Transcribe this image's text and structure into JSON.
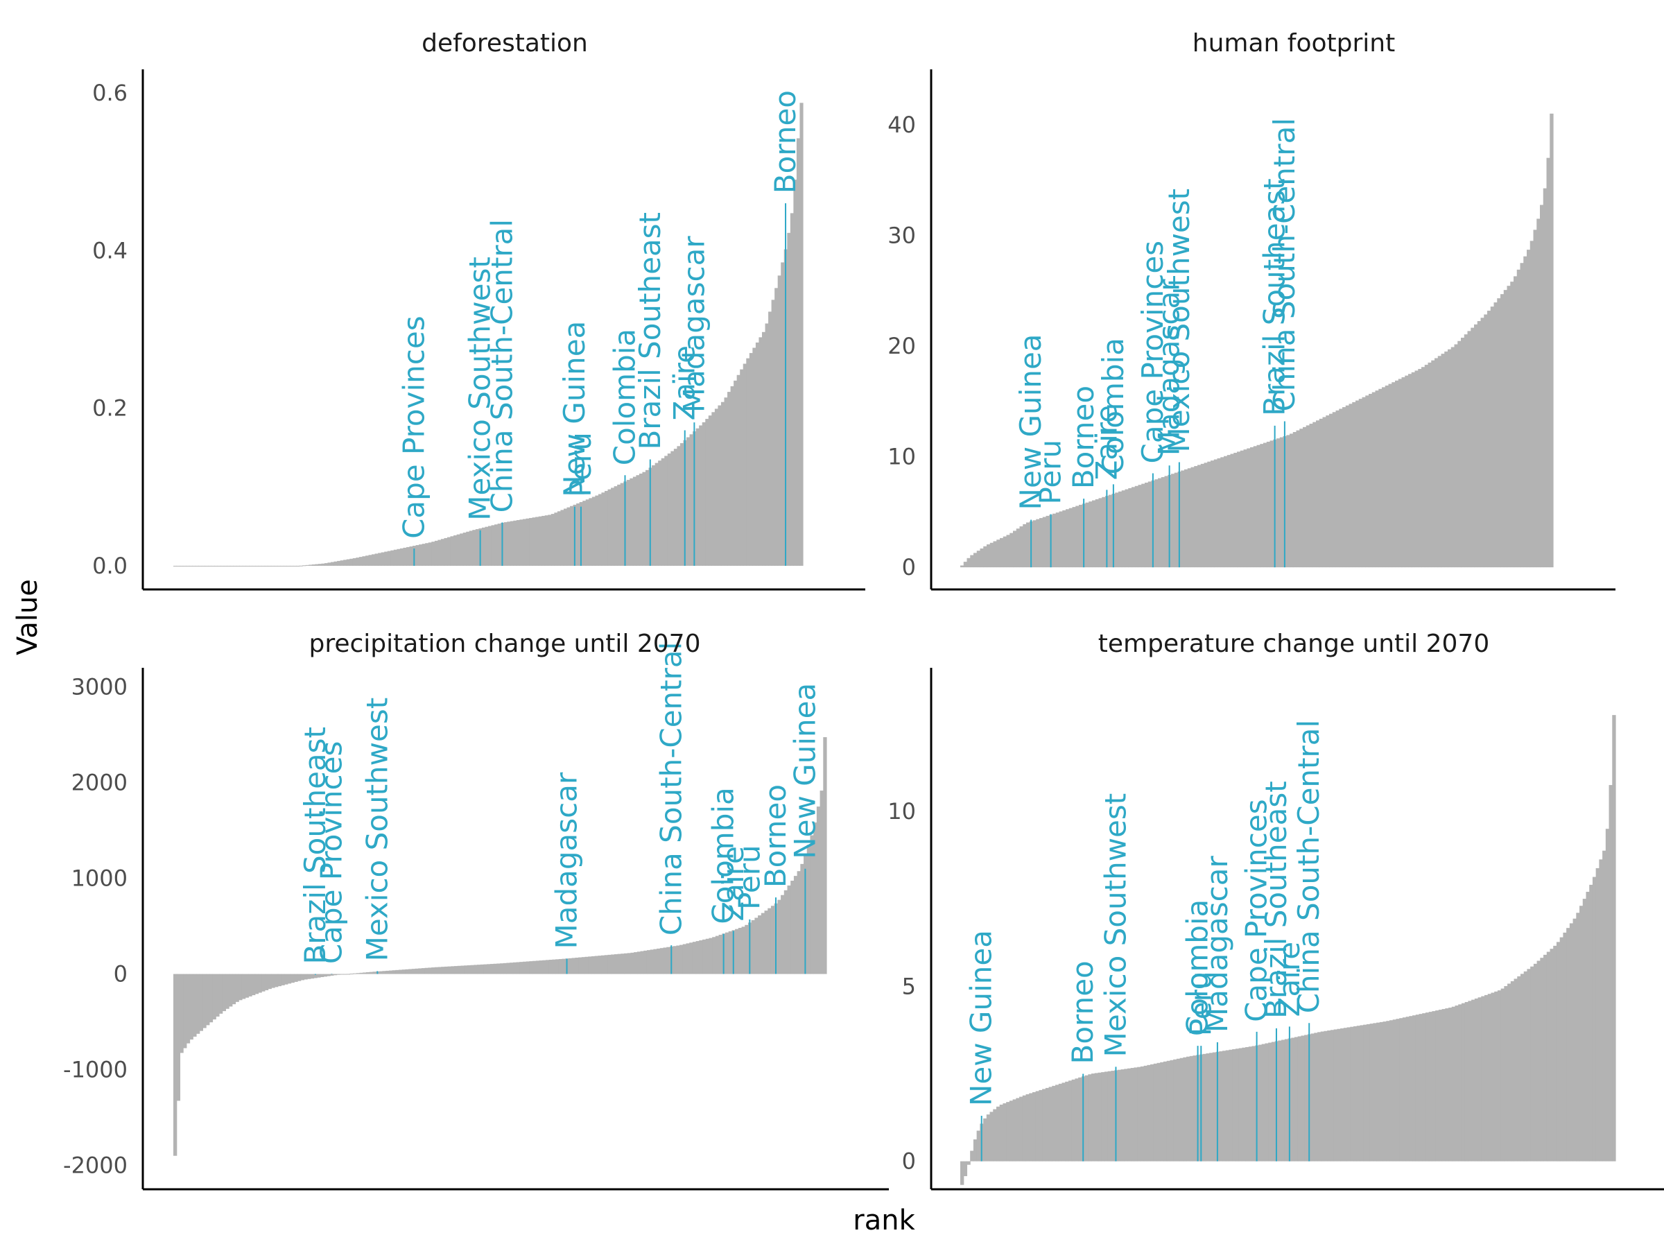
{
  "xlabel": "rank",
  "ylabel": "Value",
  "colors": {
    "bars": "#b3b3b3",
    "highlight": "#2ea8c6",
    "axis": "#000000",
    "tick_text": "#4d4d4d"
  },
  "chart_data": [
    {
      "type": "bar",
      "title": "deforestation",
      "n_bars": 200,
      "ylim": [
        -0.03,
        0.63
      ],
      "yticks": [
        0.0,
        0.2,
        0.4,
        0.6
      ],
      "ytick_labels": [
        "0.0",
        "0.2",
        "0.4",
        "0.6"
      ],
      "profile": [
        [
          0,
          0.0
        ],
        [
          40,
          0.0
        ],
        [
          48,
          0.003
        ],
        [
          58,
          0.01
        ],
        [
          70,
          0.02
        ],
        [
          82,
          0.03
        ],
        [
          95,
          0.045
        ],
        [
          105,
          0.055
        ],
        [
          120,
          0.065
        ],
        [
          135,
          0.09
        ],
        [
          150,
          0.12
        ],
        [
          160,
          0.15
        ],
        [
          168,
          0.18
        ],
        [
          175,
          0.21
        ],
        [
          182,
          0.26
        ],
        [
          188,
          0.3
        ],
        [
          192,
          0.36
        ],
        [
          195,
          0.41
        ],
        [
          197,
          0.46
        ],
        [
          198,
          0.52
        ],
        [
          200,
          0.61
        ]
      ],
      "highlights": [
        {
          "name": "Cape Provinces",
          "rank": 76,
          "value": 0.022
        },
        {
          "name": "Mexico Southwest",
          "rank": 97,
          "value": 0.045
        },
        {
          "name": "China South-Central",
          "rank": 104,
          "value": 0.055
        },
        {
          "name": "New Guinea",
          "rank": 127,
          "value": 0.075
        },
        {
          "name": "Peru",
          "rank": 129,
          "value": 0.075
        },
        {
          "name": "Colombia",
          "rank": 143,
          "value": 0.115
        },
        {
          "name": "Brazil Southeast",
          "rank": 151,
          "value": 0.135
        },
        {
          "name": "Zaïre",
          "rank": 162,
          "value": 0.172
        },
        {
          "name": "Madagascar",
          "rank": 165,
          "value": 0.182
        },
        {
          "name": "Borneo",
          "rank": 194,
          "value": 0.46
        }
      ]
    },
    {
      "type": "bar",
      "title": "human footprint",
      "n_bars": 180,
      "ylim": [
        -2,
        45
      ],
      "yticks": [
        0,
        10,
        20,
        30,
        40
      ],
      "ytick_labels": [
        "0",
        "10",
        "20",
        "30",
        "40"
      ],
      "profile": [
        [
          0,
          0.0
        ],
        [
          3,
          1.0
        ],
        [
          8,
          2.0
        ],
        [
          15,
          3.0
        ],
        [
          20,
          4.0
        ],
        [
          30,
          5.0
        ],
        [
          40,
          6.0
        ],
        [
          50,
          7.0
        ],
        [
          60,
          8.0
        ],
        [
          70,
          9.0
        ],
        [
          80,
          10.0
        ],
        [
          90,
          11.0
        ],
        [
          100,
          12.0
        ],
        [
          110,
          13.5
        ],
        [
          120,
          15.0
        ],
        [
          130,
          16.5
        ],
        [
          140,
          18.0
        ],
        [
          150,
          20.0
        ],
        [
          160,
          23.0
        ],
        [
          168,
          26.0
        ],
        [
          173,
          29.0
        ],
        [
          176,
          32.0
        ],
        [
          178,
          35.0
        ],
        [
          180,
          43.0
        ]
      ],
      "highlights": [
        {
          "name": "New Guinea",
          "rank": 21,
          "value": 4.3
        },
        {
          "name": "Peru",
          "rank": 27,
          "value": 4.8
        },
        {
          "name": "Borneo",
          "rank": 37,
          "value": 6.2
        },
        {
          "name": "Zaïre",
          "rank": 44,
          "value": 7.0
        },
        {
          "name": "Colombia",
          "rank": 46,
          "value": 7.5
        },
        {
          "name": "Cape Provinces",
          "rank": 58,
          "value": 8.5
        },
        {
          "name": "Madagascar",
          "rank": 63,
          "value": 9.2
        },
        {
          "name": "Mexico Southwest",
          "rank": 66,
          "value": 9.5
        },
        {
          "name": "Brazil Southeast",
          "rank": 95,
          "value": 12.8
        },
        {
          "name": "China South-Central",
          "rank": 98,
          "value": 13.2
        }
      ]
    },
    {
      "type": "bar",
      "title": "precipitation change until 2070",
      "n_bars": 200,
      "ylim": [
        -2250,
        3200
      ],
      "yticks": [
        -2000,
        -1000,
        0,
        1000,
        2000,
        3000
      ],
      "ytick_labels": [
        "-2000",
        "-1000",
        "0",
        "1000",
        "2000",
        "3000"
      ],
      "profile": [
        [
          0,
          -2000.0
        ],
        [
          1,
          -1800.0
        ],
        [
          2,
          -850.0
        ],
        [
          5,
          -700.0
        ],
        [
          10,
          -550.0
        ],
        [
          15,
          -400.0
        ],
        [
          20,
          -280.0
        ],
        [
          30,
          -150.0
        ],
        [
          40,
          -60.0
        ],
        [
          50,
          -10.0
        ],
        [
          60,
          20.0
        ],
        [
          80,
          70.0
        ],
        [
          100,
          110.0
        ],
        [
          120,
          160.0
        ],
        [
          140,
          220.0
        ],
        [
          155,
          300.0
        ],
        [
          165,
          380.0
        ],
        [
          175,
          500.0
        ],
        [
          185,
          750.0
        ],
        [
          192,
          1100.0
        ],
        [
          196,
          1500.0
        ],
        [
          199,
          2000.0
        ],
        [
          200,
          2950.0
        ]
      ],
      "highlights": [
        {
          "name": "Brazil Southeast",
          "rank": 43,
          "value": -8
        },
        {
          "name": "Cape Provinces",
          "rank": 48,
          "value": 3
        },
        {
          "name": "Mexico Southwest",
          "rank": 62,
          "value": 30
        },
        {
          "name": "Madagascar",
          "rank": 120,
          "value": 160
        },
        {
          "name": "China South-Central",
          "rank": 152,
          "value": 300
        },
        {
          "name": "Colombia",
          "rank": 168,
          "value": 420
        },
        {
          "name": "Zaïre",
          "rank": 171,
          "value": 450
        },
        {
          "name": "Peru",
          "rank": 176,
          "value": 570
        },
        {
          "name": "Borneo",
          "rank": 184,
          "value": 800
        },
        {
          "name": "New Guinea",
          "rank": 193,
          "value": 1100
        }
      ]
    },
    {
      "type": "bar",
      "title": "temperature change until 2070",
      "n_bars": 200,
      "ylim": [
        -0.8,
        14.1
      ],
      "yticks": [
        0,
        5,
        10
      ],
      "ytick_labels": [
        "0",
        "5",
        "10"
      ],
      "profile": [
        [
          0,
          -0.8
        ],
        [
          2,
          -0.3
        ],
        [
          4,
          0.5
        ],
        [
          6,
          1.0
        ],
        [
          8,
          1.3
        ],
        [
          12,
          1.6
        ],
        [
          20,
          1.9
        ],
        [
          30,
          2.2
        ],
        [
          40,
          2.5
        ],
        [
          55,
          2.7
        ],
        [
          70,
          3.0
        ],
        [
          90,
          3.3
        ],
        [
          110,
          3.7
        ],
        [
          130,
          4.0
        ],
        [
          150,
          4.4
        ],
        [
          165,
          4.9
        ],
        [
          175,
          5.6
        ],
        [
          182,
          6.2
        ],
        [
          188,
          7.0
        ],
        [
          193,
          8.0
        ],
        [
          197,
          9.0
        ],
        [
          198,
          10.0
        ],
        [
          199,
          11.5
        ],
        [
          200,
          14.0
        ]
      ],
      "highlights": [
        {
          "name": "New Guinea",
          "rank": 6,
          "value": 1.3
        },
        {
          "name": "Borneo",
          "rank": 37,
          "value": 2.5
        },
        {
          "name": "Mexico Southwest",
          "rank": 47,
          "value": 2.7
        },
        {
          "name": "Colombia",
          "rank": 72,
          "value": 3.3
        },
        {
          "name": "Peru",
          "rank": 73,
          "value": 3.3
        },
        {
          "name": "Madagascar",
          "rank": 78,
          "value": 3.4
        },
        {
          "name": "Cape Provinces",
          "rank": 90,
          "value": 3.7
        },
        {
          "name": "Brazil Southeast",
          "rank": 96,
          "value": 3.8
        },
        {
          "name": "Zaïre",
          "rank": 100,
          "value": 3.85
        },
        {
          "name": "China South-Central",
          "rank": 106,
          "value": 3.95
        }
      ]
    }
  ]
}
